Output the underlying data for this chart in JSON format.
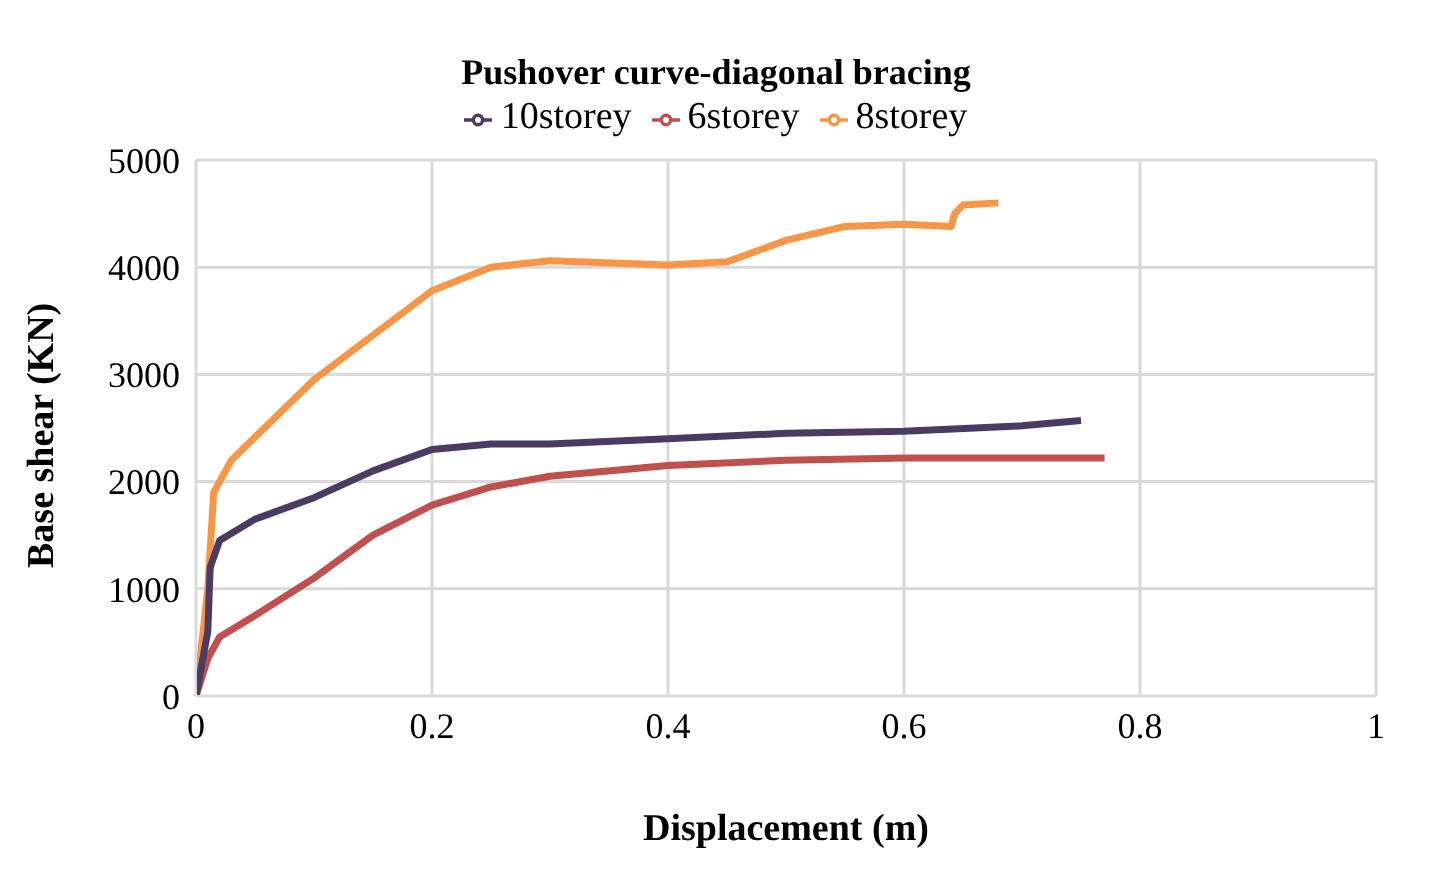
{
  "chart_data": {
    "type": "line",
    "title": "Pushover curve-diagonal bracing",
    "xlabel": "Displacement (m)",
    "ylabel": "Base shear (KN)",
    "xlim": [
      0,
      1
    ],
    "xticks": [
      0,
      0.2,
      0.4,
      0.6,
      0.8,
      1
    ],
    "ylim": [
      0,
      5000
    ],
    "yticks": [
      0,
      1000,
      2000,
      3000,
      4000,
      5000
    ],
    "grid": true,
    "legend": "top",
    "marker": "none",
    "line_style": "solid",
    "series": [
      {
        "name": "6storey",
        "color": "#c0504d",
        "x": [
          0,
          0.01,
          0.02,
          0.05,
          0.1,
          0.15,
          0.2,
          0.25,
          0.3,
          0.4,
          0.5,
          0.6,
          0.77
        ],
        "values": [
          0,
          350,
          550,
          750,
          1100,
          1500,
          1780,
          1950,
          2050,
          2150,
          2200,
          2220,
          2220
        ]
      },
      {
        "name": "8storey",
        "color": "#f79646",
        "x": [
          0,
          0.01,
          0.015,
          0.03,
          0.1,
          0.2,
          0.25,
          0.3,
          0.4,
          0.45,
          0.5,
          0.55,
          0.6,
          0.64,
          0.643,
          0.65,
          0.68
        ],
        "values": [
          0,
          1000,
          1900,
          2200,
          2950,
          3780,
          4000,
          4060,
          4020,
          4050,
          4250,
          4380,
          4400,
          4380,
          4500,
          4580,
          4600
        ]
      },
      {
        "name": "10storey",
        "color": "#4b3b63",
        "x": [
          0,
          0.01,
          0.012,
          0.02,
          0.05,
          0.1,
          0.15,
          0.2,
          0.25,
          0.3,
          0.4,
          0.5,
          0.6,
          0.7,
          0.75
        ],
        "values": [
          0,
          600,
          1200,
          1450,
          1650,
          1850,
          2100,
          2300,
          2350,
          2350,
          2400,
          2450,
          2470,
          2520,
          2570
        ]
      }
    ]
  }
}
